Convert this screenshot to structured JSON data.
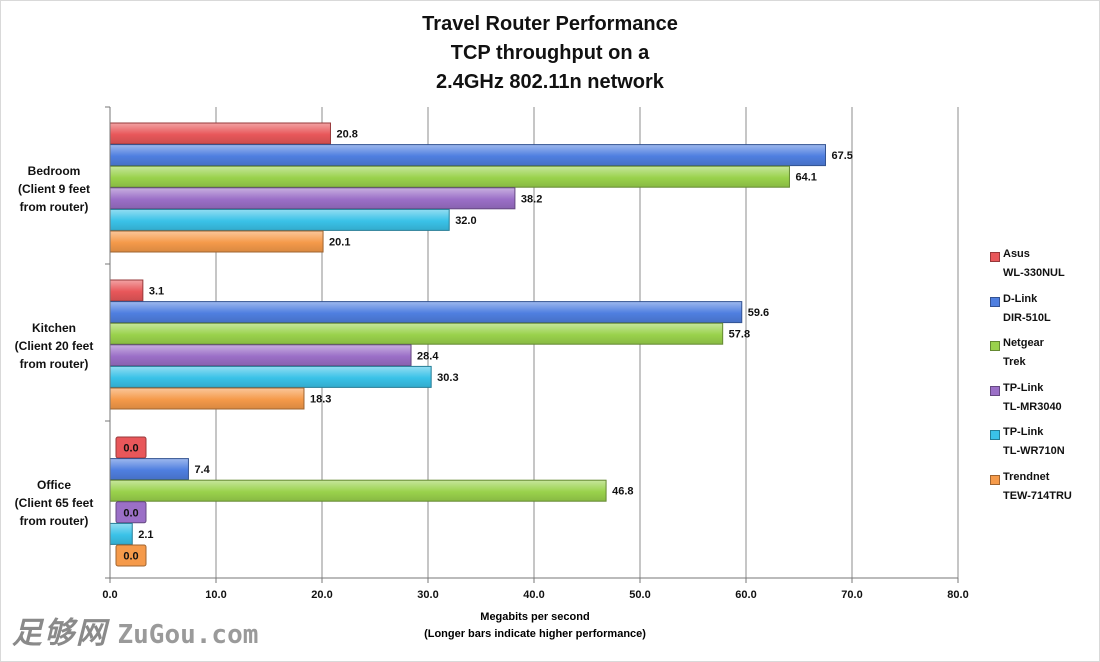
{
  "title_lines": [
    "Travel Router Performance",
    "TCP throughput on a",
    "2.4GHz 802.11n network"
  ],
  "x_axis_title_lines": [
    "Megabits per second",
    "(Longer bars indicate higher performance)"
  ],
  "watermark": {
    "chinese": "足够网",
    "domain": "ZuGou.com"
  },
  "chart_data": {
    "type": "bar",
    "orientation": "horizontal",
    "title": "Travel Router Performance TCP throughput on a 2.4GHz 802.11n network",
    "xlabel": "Megabits per second (Longer bars indicate higher performance)",
    "ylabel": "",
    "xlim": [
      0,
      80
    ],
    "x_ticks": [
      "0.0",
      "10.0",
      "20.0",
      "30.0",
      "40.0",
      "50.0",
      "60.0",
      "70.0",
      "80.0"
    ],
    "grid": true,
    "legend_position": "right",
    "categories": [
      {
        "key": "bedroom",
        "lines": [
          "Bedroom",
          "(Client 9 feet",
          "from router)"
        ]
      },
      {
        "key": "kitchen",
        "lines": [
          "Kitchen",
          "(Client 20 feet",
          "from router)"
        ]
      },
      {
        "key": "office",
        "lines": [
          "Office",
          "(Client 65 feet",
          "from router)"
        ]
      }
    ],
    "series": [
      {
        "name": "Asus WL-330NUL",
        "legend_lines": [
          "Asus",
          "WL-330NUL"
        ],
        "color": "#e8575a",
        "values": [
          20.8,
          3.1,
          0.0
        ],
        "labels": [
          "20.8",
          "3.1",
          "0.0"
        ]
      },
      {
        "name": "D-Link DIR-510L",
        "legend_lines": [
          "D-Link",
          "DIR-510L"
        ],
        "color": "#4f7fe0",
        "values": [
          67.5,
          59.6,
          7.4
        ],
        "labels": [
          "67.5",
          "59.6",
          "7.4"
        ]
      },
      {
        "name": "Netgear Trek",
        "legend_lines": [
          "Netgear",
          "Trek"
        ],
        "color": "#9ad24c",
        "values": [
          64.1,
          57.8,
          46.8
        ],
        "labels": [
          "64.1",
          "57.8",
          "46.8"
        ]
      },
      {
        "name": "TP-Link TL-MR3040",
        "legend_lines": [
          "TP-Link",
          "TL-MR3040"
        ],
        "color": "#9b6fc7",
        "values": [
          38.2,
          28.4,
          0.0
        ],
        "labels": [
          "38.2",
          "28.4",
          "0.0"
        ]
      },
      {
        "name": "TP-Link TL-WR710N",
        "legend_lines": [
          "TP-Link",
          "TL-WR710N"
        ],
        "color": "#3ac2e8",
        "values": [
          32.0,
          30.3,
          2.1
        ],
        "labels": [
          "32.0",
          "30.3",
          "2.1"
        ]
      },
      {
        "name": "Trendnet TEW-714TRU",
        "legend_lines": [
          "Trendnet",
          "TEW-714TRU"
        ],
        "color": "#f59a4a",
        "values": [
          20.1,
          18.3,
          0.0
        ],
        "labels": [
          "20.1",
          "18.3",
          "0.0"
        ]
      }
    ]
  }
}
